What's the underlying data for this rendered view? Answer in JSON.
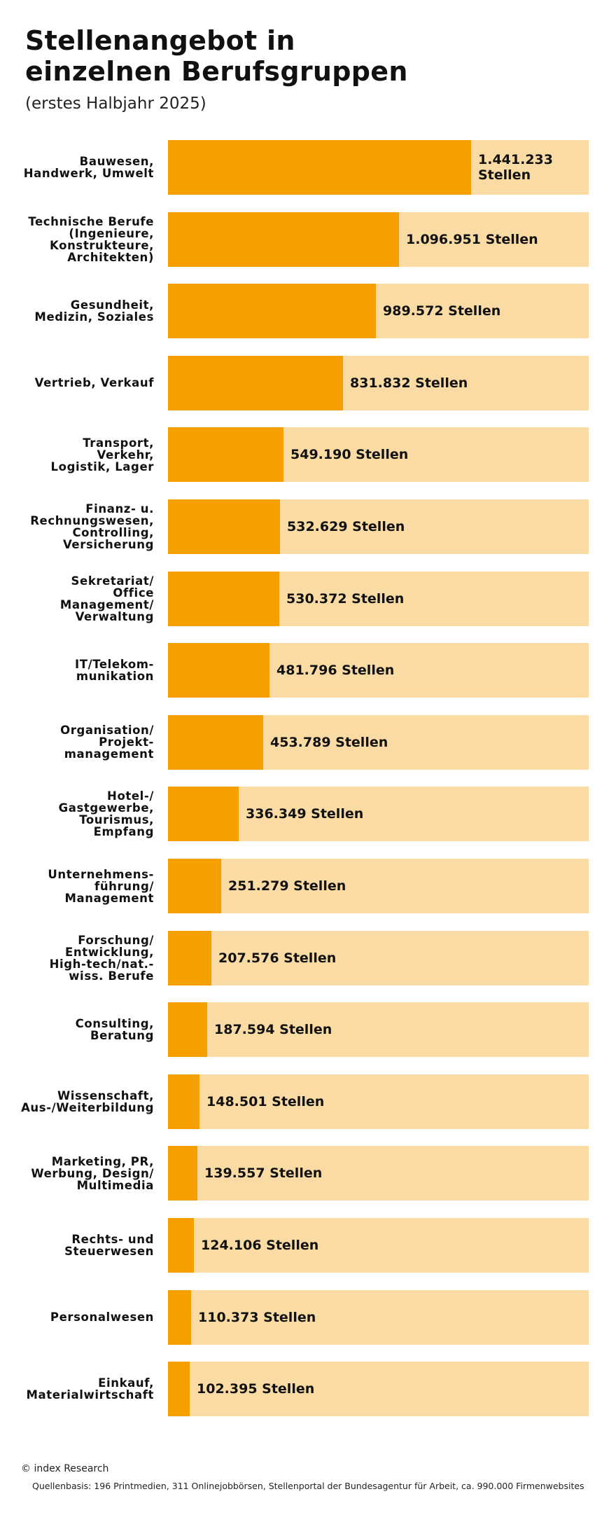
{
  "chart_data": {
    "type": "bar",
    "orientation": "horizontal",
    "title_lines": [
      "Stellenangebot in",
      "einzelnen Berufsgruppen"
    ],
    "subtitle": "(erstes Halbjahr 2025)",
    "xlim": [
      0,
      2000000
    ],
    "grid": false,
    "legend": "none",
    "colors": {
      "bar": "#f5a000",
      "background": "#f9dba3",
      "text": "#111111"
    },
    "categories": [
      "Bauwesen,\nHandwerk, Umwelt",
      "Technische Berufe\n(Ingenieure,\nKonstrukteure,\nArchitekten)",
      "Gesundheit,\nMedizin, Soziales",
      "Vertrieb, Verkauf",
      "Transport,\nVerkehr,\nLogistik, Lager",
      "Finanz- u.\nRechnungswesen,\nControlling,\nVersicherung",
      "Sekretariat/\nOffice\nManagement/\nVerwaltung",
      "IT/Telekom-\nmunikation",
      "Organisation/\nProjekt-\nmanagement",
      "Hotel-/\nGastgewerbe,\nTourismus,\nEmpfang",
      "Unternehmens-\nführung/\nManagement",
      "Forschung/\nEntwicklung,\nHigh-tech/nat.-\nwiss. Berufe",
      "Consulting,\nBeratung",
      "Wissenschaft,\nAus-/Weiterbildung",
      "Marketing, PR,\nWerbung, Design/\nMultimedia",
      "Rechts- und\nSteuerwesen",
      "Personalwesen",
      "Einkauf,\nMaterialwirtschaft"
    ],
    "values": [
      1441233,
      1096951,
      989572,
      831832,
      549190,
      532629,
      530372,
      481796,
      453789,
      336349,
      251279,
      207576,
      187594,
      148501,
      139557,
      124106,
      110373,
      102395
    ],
    "value_labels": [
      "1.441.233 Stellen",
      "1.096.951 Stellen",
      "989.572 Stellen",
      "831.832 Stellen",
      "549.190 Stellen",
      "532.629 Stellen",
      "530.372 Stellen",
      "481.796 Stellen",
      "453.789 Stellen",
      "336.349 Stellen",
      "251.279 Stellen",
      "207.576 Stellen",
      "187.594 Stellen",
      "148.501 Stellen",
      "139.557 Stellen",
      "124.106 Stellen",
      "110.373 Stellen",
      "102.395 Stellen"
    ]
  },
  "footer": {
    "copyright": "© index Research",
    "source": "Quellenbasis: 196 Printmedien, 311 Onlinejobbörsen, Stellenportal der Bundesagentur für Arbeit, ca. 990.000 Firmenwebsites"
  }
}
